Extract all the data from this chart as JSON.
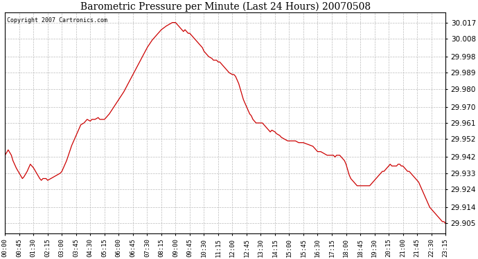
{
  "title": "Barometric Pressure per Minute (Last 24 Hours) 20070508",
  "copyright_text": "Copyright 2007 Cartronics.com",
  "line_color": "#cc0000",
  "bg_color": "#ffffff",
  "grid_color": "#bbbbbb",
  "yticks": [
    29.905,
    29.914,
    29.924,
    29.933,
    29.942,
    29.952,
    29.961,
    29.97,
    29.98,
    29.989,
    29.998,
    30.008,
    30.017
  ],
  "ylim": [
    29.8995,
    30.0225
  ],
  "xtick_labels": [
    "00:00",
    "00:45",
    "01:30",
    "02:15",
    "03:00",
    "03:45",
    "04:30",
    "05:15",
    "06:00",
    "06:45",
    "07:30",
    "08:15",
    "09:00",
    "09:45",
    "10:30",
    "11:15",
    "12:00",
    "12:45",
    "13:30",
    "14:15",
    "15:00",
    "15:45",
    "16:30",
    "17:15",
    "18:00",
    "18:45",
    "19:30",
    "20:15",
    "21:00",
    "21:45",
    "22:30",
    "23:15"
  ],
  "keypoints": [
    [
      0,
      29.943
    ],
    [
      10,
      29.946
    ],
    [
      20,
      29.943
    ],
    [
      25,
      29.94
    ],
    [
      35,
      29.936
    ],
    [
      45,
      29.933
    ],
    [
      55,
      29.93
    ],
    [
      60,
      29.931
    ],
    [
      70,
      29.934
    ],
    [
      80,
      29.938
    ],
    [
      90,
      29.936
    ],
    [
      100,
      29.933
    ],
    [
      110,
      29.93
    ],
    [
      115,
      29.929
    ],
    [
      120,
      29.93
    ],
    [
      130,
      29.93
    ],
    [
      135,
      29.929
    ],
    [
      145,
      29.93
    ],
    [
      155,
      29.931
    ],
    [
      165,
      29.932
    ],
    [
      175,
      29.933
    ],
    [
      180,
      29.934
    ],
    [
      195,
      29.94
    ],
    [
      210,
      29.948
    ],
    [
      225,
      29.954
    ],
    [
      235,
      29.958
    ],
    [
      240,
      29.96
    ],
    [
      250,
      29.961
    ],
    [
      260,
      29.963
    ],
    [
      270,
      29.962
    ],
    [
      275,
      29.963
    ],
    [
      285,
      29.963
    ],
    [
      295,
      29.964
    ],
    [
      300,
      29.963
    ],
    [
      315,
      29.963
    ],
    [
      330,
      29.966
    ],
    [
      345,
      29.97
    ],
    [
      360,
      29.974
    ],
    [
      375,
      29.978
    ],
    [
      390,
      29.983
    ],
    [
      405,
      29.988
    ],
    [
      420,
      29.993
    ],
    [
      435,
      29.998
    ],
    [
      450,
      30.003
    ],
    [
      465,
      30.007
    ],
    [
      480,
      30.01
    ],
    [
      495,
      30.013
    ],
    [
      510,
      30.015
    ],
    [
      520,
      30.016
    ],
    [
      530,
      30.017
    ],
    [
      540,
      30.017
    ],
    [
      545,
      30.016
    ],
    [
      555,
      30.014
    ],
    [
      560,
      30.013
    ],
    [
      565,
      30.012
    ],
    [
      570,
      30.013
    ],
    [
      575,
      30.012
    ],
    [
      580,
      30.011
    ],
    [
      585,
      30.011
    ],
    [
      590,
      30.01
    ],
    [
      600,
      30.008
    ],
    [
      615,
      30.005
    ],
    [
      625,
      30.003
    ],
    [
      630,
      30.001
    ],
    [
      640,
      29.999
    ],
    [
      645,
      29.998
    ],
    [
      655,
      29.997
    ],
    [
      660,
      29.996
    ],
    [
      665,
      29.996
    ],
    [
      670,
      29.996
    ],
    [
      675,
      29.995
    ],
    [
      680,
      29.995
    ],
    [
      690,
      29.993
    ],
    [
      695,
      29.992
    ],
    [
      700,
      29.991
    ],
    [
      705,
      29.99
    ],
    [
      710,
      29.989
    ],
    [
      720,
      29.988
    ],
    [
      725,
      29.988
    ],
    [
      730,
      29.987
    ],
    [
      735,
      29.985
    ],
    [
      740,
      29.983
    ],
    [
      745,
      29.98
    ],
    [
      750,
      29.977
    ],
    [
      755,
      29.974
    ],
    [
      760,
      29.972
    ],
    [
      765,
      29.97
    ],
    [
      770,
      29.968
    ],
    [
      775,
      29.966
    ],
    [
      780,
      29.965
    ],
    [
      785,
      29.963
    ],
    [
      790,
      29.962
    ],
    [
      795,
      29.961
    ],
    [
      800,
      29.961
    ],
    [
      810,
      29.961
    ],
    [
      815,
      29.961
    ],
    [
      820,
      29.96
    ],
    [
      825,
      29.959
    ],
    [
      830,
      29.958
    ],
    [
      835,
      29.957
    ],
    [
      840,
      29.956
    ],
    [
      845,
      29.957
    ],
    [
      855,
      29.956
    ],
    [
      860,
      29.955
    ],
    [
      870,
      29.954
    ],
    [
      875,
      29.953
    ],
    [
      885,
      29.952
    ],
    [
      895,
      29.951
    ],
    [
      900,
      29.951
    ],
    [
      915,
      29.951
    ],
    [
      920,
      29.951
    ],
    [
      930,
      29.95
    ],
    [
      940,
      29.95
    ],
    [
      945,
      29.95
    ],
    [
      960,
      29.949
    ],
    [
      975,
      29.948
    ],
    [
      980,
      29.947
    ],
    [
      985,
      29.946
    ],
    [
      990,
      29.945
    ],
    [
      1000,
      29.945
    ],
    [
      1010,
      29.944
    ],
    [
      1020,
      29.943
    ],
    [
      1030,
      29.943
    ],
    [
      1035,
      29.943
    ],
    [
      1040,
      29.943
    ],
    [
      1045,
      29.942
    ],
    [
      1050,
      29.943
    ],
    [
      1055,
      29.943
    ],
    [
      1060,
      29.943
    ],
    [
      1065,
      29.942
    ],
    [
      1070,
      29.941
    ],
    [
      1075,
      29.94
    ],
    [
      1080,
      29.938
    ],
    [
      1085,
      29.935
    ],
    [
      1090,
      29.932
    ],
    [
      1095,
      29.93
    ],
    [
      1100,
      29.929
    ],
    [
      1110,
      29.927
    ],
    [
      1115,
      29.926
    ],
    [
      1120,
      29.926
    ],
    [
      1125,
      29.926
    ],
    [
      1130,
      29.926
    ],
    [
      1140,
      29.926
    ],
    [
      1150,
      29.926
    ],
    [
      1155,
      29.926
    ],
    [
      1160,
      29.927
    ],
    [
      1165,
      29.928
    ],
    [
      1170,
      29.929
    ],
    [
      1175,
      29.93
    ],
    [
      1180,
      29.931
    ],
    [
      1185,
      29.932
    ],
    [
      1190,
      29.933
    ],
    [
      1195,
      29.934
    ],
    [
      1200,
      29.934
    ],
    [
      1205,
      29.935
    ],
    [
      1210,
      29.936
    ],
    [
      1215,
      29.937
    ],
    [
      1220,
      29.938
    ],
    [
      1225,
      29.937
    ],
    [
      1230,
      29.937
    ],
    [
      1235,
      29.937
    ],
    [
      1240,
      29.937
    ],
    [
      1245,
      29.938
    ],
    [
      1250,
      29.938
    ],
    [
      1255,
      29.937
    ],
    [
      1260,
      29.937
    ],
    [
      1265,
      29.936
    ],
    [
      1270,
      29.935
    ],
    [
      1275,
      29.934
    ],
    [
      1280,
      29.934
    ],
    [
      1285,
      29.933
    ],
    [
      1290,
      29.932
    ],
    [
      1295,
      29.931
    ],
    [
      1300,
      29.93
    ],
    [
      1305,
      29.929
    ],
    [
      1310,
      29.928
    ],
    [
      1315,
      29.926
    ],
    [
      1320,
      29.924
    ],
    [
      1325,
      29.922
    ],
    [
      1330,
      29.92
    ],
    [
      1335,
      29.918
    ],
    [
      1340,
      29.916
    ],
    [
      1345,
      29.914
    ],
    [
      1350,
      29.913
    ],
    [
      1355,
      29.912
    ],
    [
      1360,
      29.911
    ],
    [
      1365,
      29.91
    ],
    [
      1370,
      29.909
    ],
    [
      1375,
      29.908
    ],
    [
      1380,
      29.907
    ],
    [
      1385,
      29.906
    ],
    [
      1390,
      29.906
    ],
    [
      1395,
      29.905
    ]
  ]
}
